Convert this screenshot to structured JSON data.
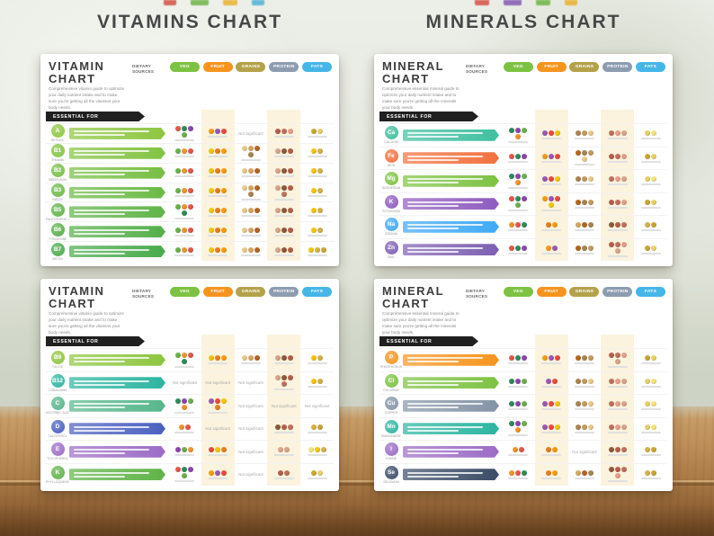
{
  "page": {
    "header_left": "VITAMINS CHART",
    "header_right": "MINERALS CHART"
  },
  "shared": {
    "dietary_sources_label": "DIETARY SOURCES",
    "essential_for_label": "ESSENTIAL FOR",
    "not_significant_label": "Not significant",
    "categories": [
      {
        "label": "VEG",
        "color": "#7dc242",
        "icon_colors": [
          "#e2574c",
          "#6ab04c",
          "#2e8b57",
          "#f0932b",
          "#8e44ad"
        ]
      },
      {
        "label": "FRUIT",
        "color": "#f7941d",
        "icon_colors": [
          "#e74c3c",
          "#f39c12",
          "#f1c40f",
          "#9b59b6",
          "#e67e22"
        ]
      },
      {
        "label": "GRAINS",
        "color": "#b3a24a",
        "icon_colors": [
          "#d4a762",
          "#c49a5a",
          "#b5651d",
          "#e8c98a",
          "#a98450"
        ]
      },
      {
        "label": "PROTEIN",
        "color": "#8d9db0",
        "icon_colors": [
          "#c0705e",
          "#8d5a3b",
          "#e59f8a",
          "#b45f4d",
          "#d8a38a"
        ]
      },
      {
        "label": "FATS",
        "color": "#45b6e8",
        "icon_colors": [
          "#f1c40f",
          "#e8d06a",
          "#d4b14a",
          "#f6e27a",
          "#c9a635"
        ]
      }
    ]
  },
  "posters": [
    {
      "title_lines": [
        "VITAMIN",
        "CHART"
      ],
      "description": "Comprehensive vitamin guide to optimize your daily nutrient intake and to make sure you're getting all the vitamins your body needs.",
      "nutrients": [
        {
          "symbol": "A",
          "name": "RETINOL",
          "color": "#8dc63f",
          "cells": [
            "4",
            "3",
            "NS",
            "3",
            "2"
          ]
        },
        {
          "symbol": "B1",
          "name": "THIAMIN",
          "color": "#82c341",
          "cells": [
            "3",
            "3",
            "4",
            "3",
            "2"
          ]
        },
        {
          "symbol": "B2",
          "name": "RIBOFLAVIN",
          "color": "#76be43",
          "cells": [
            "3",
            "3",
            "3",
            "3",
            "2"
          ]
        },
        {
          "symbol": "B3",
          "name": "NIACIN",
          "color": "#6bb945",
          "cells": [
            "3",
            "3",
            "4",
            "4",
            "2"
          ]
        },
        {
          "symbol": "B5",
          "name": "PANTOTHENIC ACID",
          "color": "#5fb447",
          "cells": [
            "4",
            "3",
            "3",
            "3",
            "2"
          ]
        },
        {
          "symbol": "B6",
          "name": "PYRIDOXINE",
          "color": "#54af49",
          "cells": [
            "3",
            "3",
            "3",
            "3",
            "2"
          ]
        },
        {
          "symbol": "B7",
          "name": "BIOTIN",
          "color": "#48aa4b",
          "cells": [
            "3",
            "3",
            "3",
            "3",
            "3"
          ]
        }
      ]
    },
    {
      "title_lines": [
        "MINERAL",
        "CHART"
      ],
      "description": "Comprehensive essential mineral guide to optimize your daily nutrient intake and to make sure you're getting all the minerals your body needs.",
      "nutrients": [
        {
          "symbol": "Ca",
          "name": "CALCIUM",
          "color": "#3fbf9f",
          "cells": [
            "4",
            "3",
            "3",
            "3",
            "2"
          ]
        },
        {
          "symbol": "Fe",
          "name": "IRON",
          "color": "#f2703d",
          "cells": [
            "3",
            "3",
            "4",
            "3",
            "2"
          ]
        },
        {
          "symbol": "Mg",
          "name": "MAGNESIUM",
          "color": "#7dc242",
          "cells": [
            "4",
            "3",
            "3",
            "3",
            "2"
          ]
        },
        {
          "symbol": "K",
          "name": "POTASSIUM",
          "color": "#8f5bbf",
          "cells": [
            "4",
            "4",
            "3",
            "3",
            "2"
          ]
        },
        {
          "symbol": "Na",
          "name": "SODIUM",
          "color": "#3fa9f5",
          "cells": [
            "3",
            "2",
            "3",
            "3",
            "2"
          ]
        },
        {
          "symbol": "Zn",
          "name": "ZINC",
          "color": "#7d5fb2",
          "cells": [
            "3",
            "2",
            "3",
            "4",
            "2"
          ]
        }
      ]
    },
    {
      "title_lines": [
        "VITAMIN",
        "CHART"
      ],
      "description": "Comprehensive vitamin guide to optimize your daily nutrient intake and to make sure you're getting all the vitamins your body needs.",
      "nutrients": [
        {
          "symbol": "B9",
          "name": "FOLATE",
          "color": "#8dc63f",
          "cells": [
            "4",
            "3",
            "3",
            "3",
            "2"
          ]
        },
        {
          "symbol": "B12",
          "name": "COBALAMIN",
          "color": "#2bb5a0",
          "cells": [
            "NS",
            "NS",
            "NS",
            "4",
            "2"
          ]
        },
        {
          "symbol": "C",
          "name": "ASCORBIC ACID",
          "color": "#56b68b",
          "cells": [
            "4",
            "4",
            "NS",
            "NS",
            "NS"
          ]
        },
        {
          "symbol": "D",
          "name": "CALCIFEROL",
          "color": "#4a5fc0",
          "cells": [
            "2",
            "NS",
            "NS",
            "3",
            "2"
          ]
        },
        {
          "symbol": "E",
          "name": "TOCOPHEROL",
          "color": "#9b6bc6",
          "cells": [
            "3",
            "3",
            "NS",
            "2",
            "3"
          ]
        },
        {
          "symbol": "K",
          "name": "PHYLLOQUINONE",
          "color": "#5fb347",
          "cells": [
            "4",
            "3",
            "NS",
            "2",
            "2"
          ]
        }
      ]
    },
    {
      "title_lines": [
        "MINERAL",
        "CHART"
      ],
      "description": "Comprehensive essential mineral guide to optimize your daily nutrient intake and to make sure you're getting all the minerals your body needs.",
      "nutrients": [
        {
          "symbol": "P",
          "name": "PHOSPHORUS",
          "color": "#f7941d",
          "cells": [
            "3",
            "3",
            "3",
            "4",
            "2"
          ]
        },
        {
          "symbol": "Cl",
          "name": "CHLORIDE",
          "color": "#7dc242",
          "cells": [
            "3",
            "2",
            "3",
            "3",
            "2"
          ]
        },
        {
          "symbol": "Cu",
          "name": "COPPER",
          "color": "#8494a6",
          "cells": [
            "3",
            "3",
            "3",
            "3",
            "2"
          ]
        },
        {
          "symbol": "Mn",
          "name": "MANGANESE",
          "color": "#2bb5a0",
          "cells": [
            "4",
            "3",
            "3",
            "3",
            "2"
          ]
        },
        {
          "symbol": "I",
          "name": "IODINE",
          "color": "#9b6bc6",
          "cells": [
            "2",
            "2",
            "NS",
            "3",
            "2"
          ]
        },
        {
          "symbol": "Se",
          "name": "SELENIUM",
          "color": "#3a4b66",
          "cells": [
            "3",
            "2",
            "3",
            "4",
            "2"
          ]
        }
      ]
    }
  ]
}
